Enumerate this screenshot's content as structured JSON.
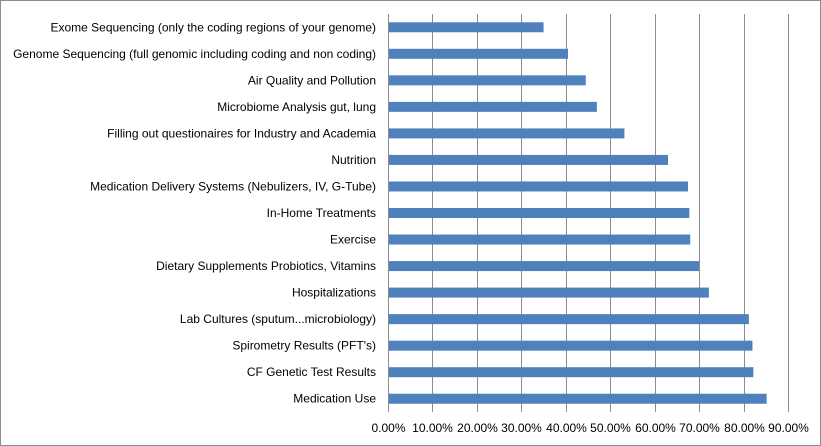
{
  "chart_data": {
    "type": "bar",
    "orientation": "horizontal",
    "categories": [
      "Medication Use",
      "CF Genetic Test Results",
      "Spirometry Results (PFT's)",
      "Lab Cultures (sputum...microbiology)",
      "Hospitalizations",
      "Dietary Supplements Probiotics, Vitamins",
      "Exercise",
      "In-Home Treatments",
      "Medication Delivery Systems (Nebulizers, IV, G-Tube)",
      "Nutrition",
      "Filling out questionaires for Industry and Academia",
      "Microbiome Analysis gut, lung",
      "Air Quality and Pollution",
      "Genome Sequencing (full genomic including coding and non coding)",
      "Exome Sequencing (only the coding regions of your genome)"
    ],
    "values": [
      85.2,
      82.2,
      82.0,
      81.2,
      72.2,
      70.0,
      68.0,
      67.8,
      67.5,
      63.0,
      53.2,
      47.0,
      44.5,
      40.5,
      35.0
    ],
    "xlim": [
      0,
      90
    ],
    "x_ticks": [
      "0.00%",
      "10.00%",
      "20.00%",
      "30.00%",
      "40.00%",
      "50.00%",
      "60.00%",
      "70.00%",
      "80.00%",
      "90.00%"
    ],
    "grid": true,
    "colors": {
      "bar": "#4f81bd",
      "grid": "#8c8c8c"
    }
  }
}
